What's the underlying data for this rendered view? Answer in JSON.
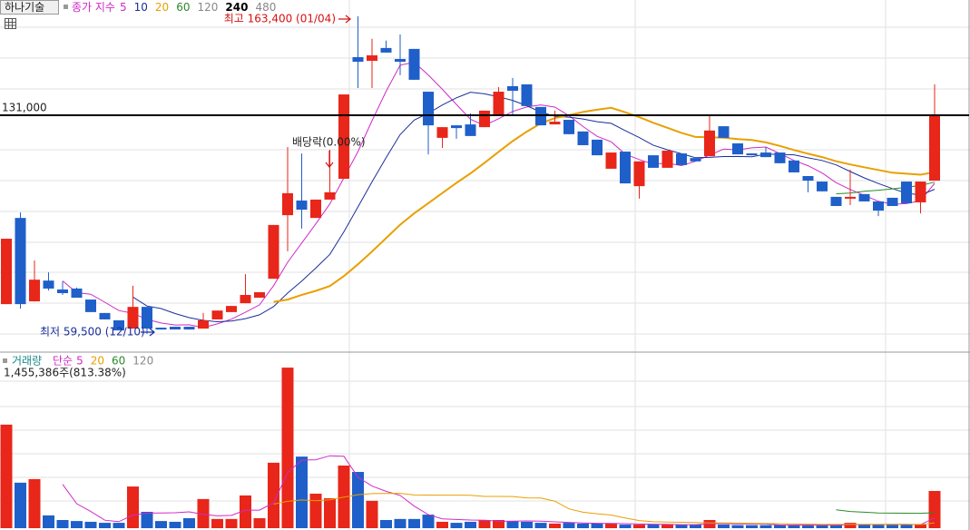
{
  "chart_data": {
    "type": "candlestick",
    "title": "하나기술",
    "legend_title": "종가 지수",
    "ylim": [
      53500,
      168700
    ],
    "moving_averages": [
      {
        "period": 5,
        "color": "#d02ac8"
      },
      {
        "period": 10,
        "color": "#1a2e9a"
      },
      {
        "period": 20,
        "color": "#e8a000"
      },
      {
        "period": 60,
        "color": "#2a8a2a"
      },
      {
        "period": 120,
        "color": "#888888"
      },
      {
        "period": 240,
        "color": "#000000",
        "bold": true
      },
      {
        "period": 480,
        "color": "#888888"
      }
    ],
    "candles": {
      "up_color": "#e8261a",
      "down_color": "#1f5fc9",
      "open": [
        69200,
        97400,
        70100,
        76900,
        74000,
        74300,
        70700,
        66300,
        63900,
        61200,
        68300,
        61500,
        61800,
        61800,
        61200,
        64200,
        66600,
        69500,
        71300,
        77500,
        98300,
        103100,
        97400,
        103400,
        110200,
        150000,
        148800,
        153000,
        149400,
        152700,
        138700,
        123600,
        127700,
        128000,
        127100,
        130700,
        140500,
        141100,
        133700,
        128000,
        129500,
        125700,
        123000,
        113500,
        119100,
        107800,
        117900,
        113800,
        118500,
        117000,
        117600,
        127400,
        121800,
        118500,
        118800,
        118800,
        116200,
        111100,
        109300,
        104300,
        103700,
        105200,
        102800,
        104000,
        109300,
        102500,
        109600
      ],
      "high": [
        90600,
        99200,
        83500,
        79600,
        76600,
        74600,
        70700,
        66300,
        63900,
        75200,
        68300,
        61500,
        61800,
        61800,
        66300,
        67100,
        68600,
        79000,
        73100,
        95100,
        120600,
        118500,
        103400,
        119700,
        137800,
        163400,
        156000,
        155400,
        157400,
        152700,
        138700,
        127100,
        127700,
        131600,
        132500,
        140200,
        143200,
        141100,
        133700,
        132500,
        129500,
        125700,
        123000,
        118800,
        119100,
        115900,
        117900,
        119400,
        118500,
        117000,
        130700,
        127400,
        121800,
        118500,
        120600,
        118800,
        116200,
        111100,
        109300,
        104300,
        113200,
        105200,
        102800,
        104000,
        109300,
        109300,
        141100
      ],
      "low": [
        69200,
        67700,
        70100,
        73700,
        72200,
        71300,
        66600,
        64200,
        60600,
        61200,
        59500,
        60900,
        60900,
        60900,
        61200,
        64200,
        66600,
        69500,
        71300,
        77500,
        86500,
        93900,
        97400,
        103400,
        110200,
        139900,
        139900,
        151500,
        144100,
        142600,
        118200,
        120300,
        123300,
        124200,
        127100,
        130700,
        130700,
        134000,
        127700,
        128000,
        124800,
        121200,
        117900,
        113500,
        108700,
        103700,
        113800,
        113800,
        114700,
        115900,
        117600,
        123600,
        118200,
        117900,
        117300,
        115300,
        112300,
        105800,
        106100,
        101300,
        101600,
        102800,
        98000,
        101300,
        102200,
        98900,
        109600
      ],
      "close": [
        90600,
        69200,
        77200,
        74300,
        72800,
        71300,
        66600,
        64200,
        60600,
        68300,
        61200,
        60900,
        60900,
        60900,
        63900,
        67100,
        68600,
        72200,
        73100,
        95100,
        105500,
        100100,
        103400,
        105800,
        137800,
        148500,
        150600,
        151500,
        148500,
        142600,
        127700,
        127100,
        126800,
        124200,
        132500,
        138700,
        139000,
        134000,
        127700,
        128900,
        124800,
        121200,
        117900,
        118800,
        108700,
        115900,
        113800,
        119400,
        114700,
        115900,
        126000,
        123600,
        118200,
        117900,
        117300,
        115300,
        112300,
        109600,
        106100,
        101300,
        104300,
        102800,
        99800,
        101300,
        102200,
        109300,
        131000
      ]
    },
    "reference_line": {
      "value": 131000,
      "label": "131,000"
    },
    "annotations": [
      "최고 163,400 (01/04)",
      "최저 59,500 (12/10)",
      "배당락(0.00%)"
    ],
    "volume": {
      "title": "거래량",
      "method": "단순",
      "current_label": "1,455,386주(813.38%)",
      "ylim": [
        0,
        6744000
      ],
      "moving_averages": [
        {
          "period": 5,
          "color": "#d02ac8"
        },
        {
          "period": 20,
          "color": "#e8a000"
        },
        {
          "period": 60,
          "color": "#2a8a2a"
        },
        {
          "period": 120,
          "color": "#888888"
        }
      ],
      "values": [
        4050000,
        1780000,
        1920000,
        500000,
        320000,
        280000,
        250000,
        210000,
        210000,
        1630000,
        640000,
        280000,
        250000,
        390000,
        1140000,
        360000,
        360000,
        1280000,
        390000,
        2560000,
        6280000,
        2800000,
        1350000,
        1170000,
        2450000,
        2200000,
        1070000,
        320000,
        360000,
        360000,
        530000,
        250000,
        210000,
        250000,
        320000,
        320000,
        280000,
        250000,
        210000,
        180000,
        210000,
        180000,
        180000,
        180000,
        140000,
        140000,
        140000,
        140000,
        140000,
        140000,
        320000,
        140000,
        120000,
        120000,
        120000,
        120000,
        120000,
        120000,
        120000,
        120000,
        210000,
        140000,
        140000,
        140000,
        140000,
        140000,
        1455386
      ]
    }
  }
}
